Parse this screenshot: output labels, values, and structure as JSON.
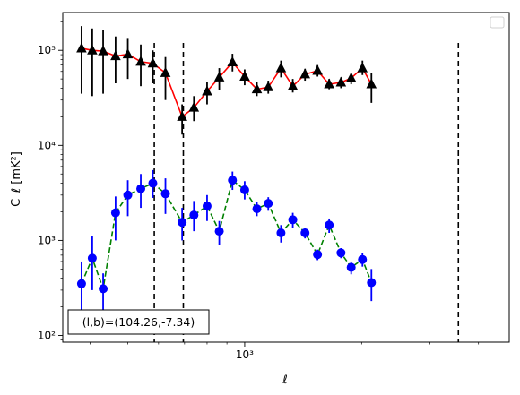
{
  "chart_data": {
    "type": "line",
    "title": "",
    "xlabel": "ℓ",
    "ylabel": "C_ℓ  [mK²]",
    "xscale": "log",
    "yscale": "log",
    "xlim": [
      340,
      4800
    ],
    "ylim": [
      85,
      250000
    ],
    "xticks": [
      {
        "value": 1000,
        "label": "10³"
      }
    ],
    "yticks": [
      {
        "value": 100,
        "label": "10²"
      },
      {
        "value": 1000,
        "label": "10³"
      },
      {
        "value": 10000,
        "label": "10⁴"
      },
      {
        "value": 100000,
        "label": "10⁵"
      }
    ],
    "legend": {
      "placement": "top-right",
      "entries": []
    },
    "annotation": "(l,b)=(104.26,-7.34)",
    "vlines": [
      585,
      695,
      3550
    ],
    "series": [
      {
        "color": "#ff0000",
        "marker": "triangle",
        "marker_color": "#000000",
        "error_color": "#000000",
        "linestyle": "solid",
        "points": [
          {
            "x": 380,
            "y": 105000,
            "lo": 35000,
            "hi": 180000
          },
          {
            "x": 405,
            "y": 100000,
            "lo": 33000,
            "hi": 170000
          },
          {
            "x": 432,
            "y": 98000,
            "lo": 35000,
            "hi": 165000
          },
          {
            "x": 465,
            "y": 87000,
            "lo": 45000,
            "hi": 140000
          },
          {
            "x": 500,
            "y": 91000,
            "lo": 50000,
            "hi": 135000
          },
          {
            "x": 540,
            "y": 76000,
            "lo": 42000,
            "hi": 115000
          },
          {
            "x": 580,
            "y": 73000,
            "lo": 45000,
            "hi": 100000
          },
          {
            "x": 625,
            "y": 58000,
            "lo": 30000,
            "hi": 85000
          },
          {
            "x": 690,
            "y": 20000,
            "lo": 13000,
            "hi": 27000
          },
          {
            "x": 740,
            "y": 25000,
            "lo": 18000,
            "hi": 33000
          },
          {
            "x": 800,
            "y": 37000,
            "lo": 27000,
            "hi": 47000
          },
          {
            "x": 860,
            "y": 52000,
            "lo": 38000,
            "hi": 65000
          },
          {
            "x": 930,
            "y": 75000,
            "lo": 60000,
            "hi": 92000
          },
          {
            "x": 1000,
            "y": 53000,
            "lo": 43000,
            "hi": 63000
          },
          {
            "x": 1075,
            "y": 39000,
            "lo": 33000,
            "hi": 46000
          },
          {
            "x": 1150,
            "y": 41000,
            "lo": 35000,
            "hi": 48000
          },
          {
            "x": 1240,
            "y": 65000,
            "lo": 52000,
            "hi": 78000
          },
          {
            "x": 1330,
            "y": 42000,
            "lo": 36000,
            "hi": 50000
          },
          {
            "x": 1430,
            "y": 56000,
            "lo": 48000,
            "hi": 64000
          },
          {
            "x": 1540,
            "y": 61000,
            "lo": 53000,
            "hi": 70000
          },
          {
            "x": 1650,
            "y": 44000,
            "lo": 39000,
            "hi": 50000
          },
          {
            "x": 1770,
            "y": 46000,
            "lo": 40000,
            "hi": 52000
          },
          {
            "x": 1880,
            "y": 51000,
            "lo": 44000,
            "hi": 58000
          },
          {
            "x": 2010,
            "y": 65000,
            "lo": 55000,
            "hi": 78000
          },
          {
            "x": 2120,
            "y": 44000,
            "lo": 28000,
            "hi": 58000
          }
        ]
      },
      {
        "color": "#008000",
        "marker": "circle",
        "marker_color": "#0000ff",
        "error_color": "#0000ff",
        "linestyle": "dashed",
        "points": [
          {
            "x": 380,
            "y": 350,
            "lo": 160,
            "hi": 600
          },
          {
            "x": 405,
            "y": 650,
            "lo": 300,
            "hi": 1100
          },
          {
            "x": 432,
            "y": 310,
            "lo": 150,
            "hi": 450
          },
          {
            "x": 465,
            "y": 1950,
            "lo": 1000,
            "hi": 2900
          },
          {
            "x": 500,
            "y": 3000,
            "lo": 1800,
            "hi": 4300
          },
          {
            "x": 540,
            "y": 3500,
            "lo": 2200,
            "hi": 5000
          },
          {
            "x": 580,
            "y": 4000,
            "lo": 2800,
            "hi": 5500
          },
          {
            "x": 625,
            "y": 3100,
            "lo": 1900,
            "hi": 4500
          },
          {
            "x": 690,
            "y": 1550,
            "lo": 1000,
            "hi": 2200
          },
          {
            "x": 740,
            "y": 1850,
            "lo": 1250,
            "hi": 2600
          },
          {
            "x": 800,
            "y": 2300,
            "lo": 1600,
            "hi": 3000
          },
          {
            "x": 860,
            "y": 1250,
            "lo": 900,
            "hi": 1600
          },
          {
            "x": 930,
            "y": 4300,
            "lo": 3400,
            "hi": 5300
          },
          {
            "x": 1000,
            "y": 3400,
            "lo": 2700,
            "hi": 4200
          },
          {
            "x": 1075,
            "y": 2150,
            "lo": 1800,
            "hi": 2550
          },
          {
            "x": 1150,
            "y": 2450,
            "lo": 2050,
            "hi": 2850
          },
          {
            "x": 1240,
            "y": 1200,
            "lo": 950,
            "hi": 1450
          },
          {
            "x": 1330,
            "y": 1650,
            "lo": 1350,
            "hi": 1950
          },
          {
            "x": 1430,
            "y": 1200,
            "lo": 1050,
            "hi": 1350
          },
          {
            "x": 1540,
            "y": 710,
            "lo": 620,
            "hi": 800
          },
          {
            "x": 1650,
            "y": 1450,
            "lo": 1200,
            "hi": 1700
          },
          {
            "x": 1770,
            "y": 740,
            "lo": 650,
            "hi": 830
          },
          {
            "x": 1880,
            "y": 520,
            "lo": 440,
            "hi": 600
          },
          {
            "x": 2010,
            "y": 630,
            "lo": 530,
            "hi": 740
          },
          {
            "x": 2120,
            "y": 360,
            "lo": 230,
            "hi": 500
          }
        ]
      }
    ]
  }
}
